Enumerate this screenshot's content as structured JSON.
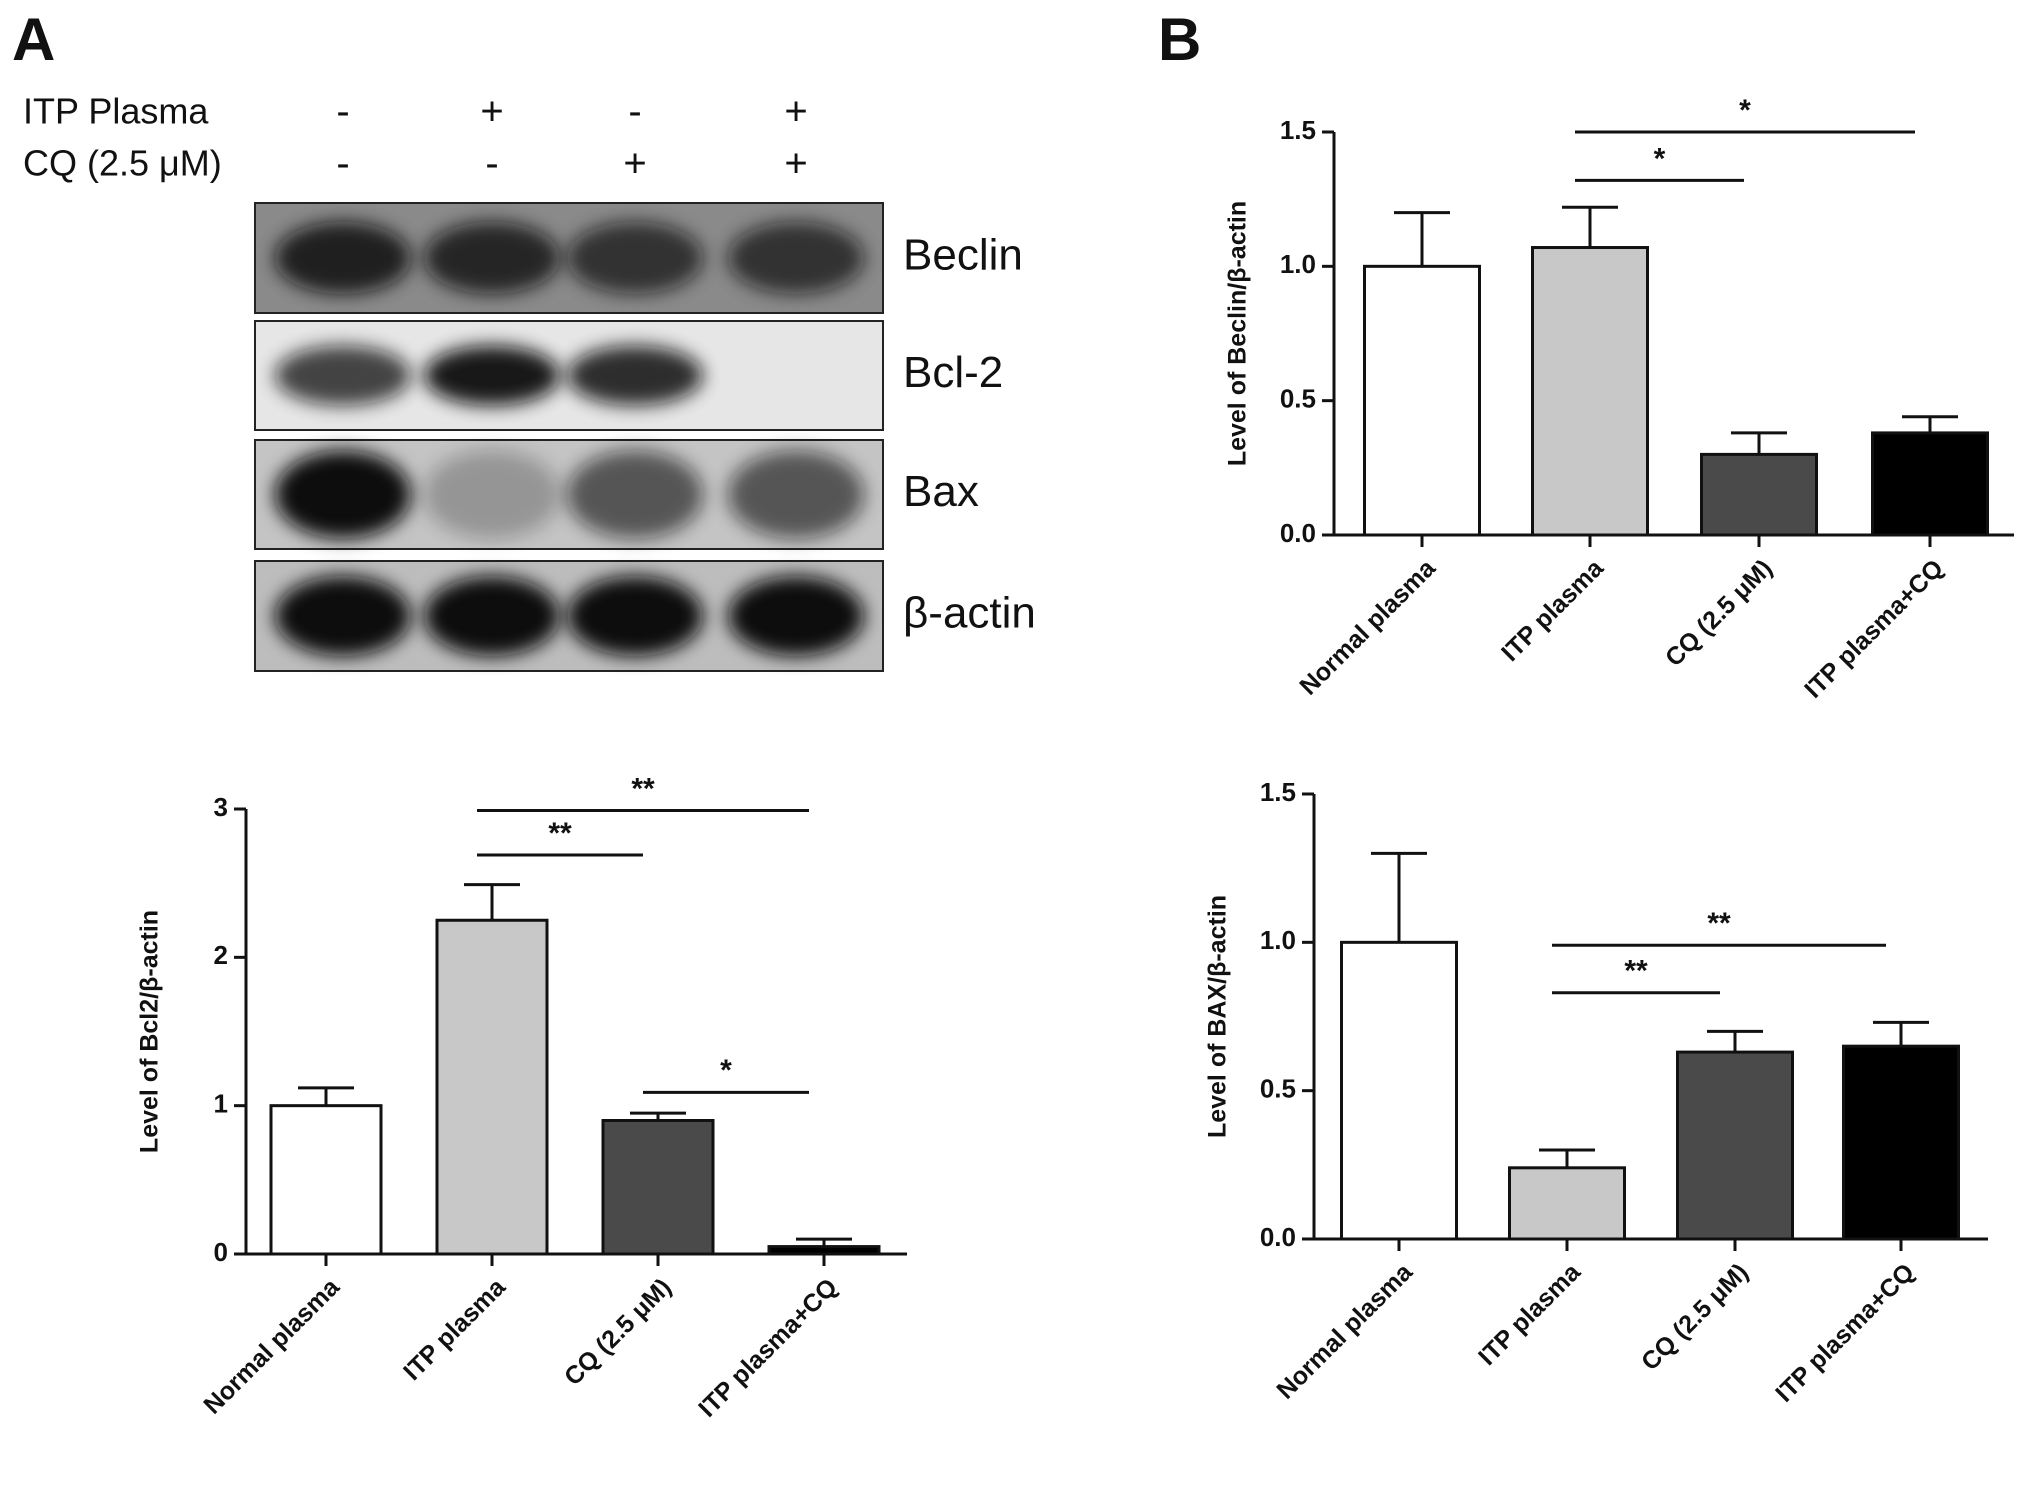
{
  "panel_labels": [
    "A",
    "B"
  ],
  "blot": {
    "conditions": [
      {
        "label": "ITP Plasma",
        "signs": [
          "-",
          "+",
          "-",
          "+"
        ]
      },
      {
        "label": "CQ (2.5 μM)",
        "signs": [
          "-",
          "-",
          "+",
          "+"
        ]
      }
    ],
    "bands": [
      "Beclin",
      "Bcl-2",
      "Bax",
      "β-actin"
    ]
  },
  "chart_data": [
    {
      "type": "bar",
      "y_label": "Level of Bcl2/β-actin",
      "categories": [
        "Normal plasma",
        "ITP plasma",
        "CQ (2.5 μM)",
        "ITP plasma+CQ"
      ],
      "values": [
        1.0,
        2.25,
        0.9,
        0.05
      ],
      "errors": [
        0.12,
        0.24,
        0.05,
        0.05
      ],
      "colors": [
        "#ffffff",
        "#c8c8c8",
        "#4a4a4a",
        "#000000"
      ],
      "ylim": [
        0,
        3
      ],
      "yticks": [
        0,
        1,
        2,
        3
      ],
      "annotations": [
        "**",
        "**",
        "*"
      ]
    },
    {
      "type": "bar",
      "y_label": "Level of Beclin/β-actin",
      "categories": [
        "Normal plasma",
        "ITP plasma",
        "CQ (2.5 μM)",
        "ITP plasma+CQ"
      ],
      "values": [
        1.0,
        1.07,
        0.3,
        0.38
      ],
      "errors": [
        0.2,
        0.15,
        0.08,
        0.06
      ],
      "colors": [
        "#ffffff",
        "#c8c8c8",
        "#4a4a4a",
        "#000000"
      ],
      "ylim": [
        0,
        1.5
      ],
      "yticks": [
        {
          "value": 0,
          "label": "0.0"
        },
        {
          "value": 0.5,
          "label": "0.5"
        },
        {
          "value": 1,
          "label": "1.0"
        },
        {
          "value": 1.5,
          "label": "1.5"
        }
      ],
      "annotations": [
        "*",
        "*"
      ]
    },
    {
      "type": "bar",
      "y_label": "Level of BAX/β-actin",
      "categories": [
        "Normal plasma",
        "ITP plasma",
        "CQ (2.5 μM)",
        "ITP plasma+CQ"
      ],
      "values": [
        1.0,
        0.24,
        0.63,
        0.65
      ],
      "errors": [
        0.3,
        0.06,
        0.07,
        0.08
      ],
      "colors": [
        "#ffffff",
        "#c8c8c8",
        "#4a4a4a",
        "#000000"
      ],
      "ylim": [
        0,
        1.5
      ],
      "yticks": [
        {
          "value": 0,
          "label": "0.0"
        },
        {
          "value": 0.5,
          "label": "0.5"
        },
        {
          "value": 1,
          "label": "1.0"
        },
        {
          "value": 1.5,
          "label": "1.5"
        }
      ],
      "annotations": [
        "**",
        "**"
      ]
    }
  ]
}
